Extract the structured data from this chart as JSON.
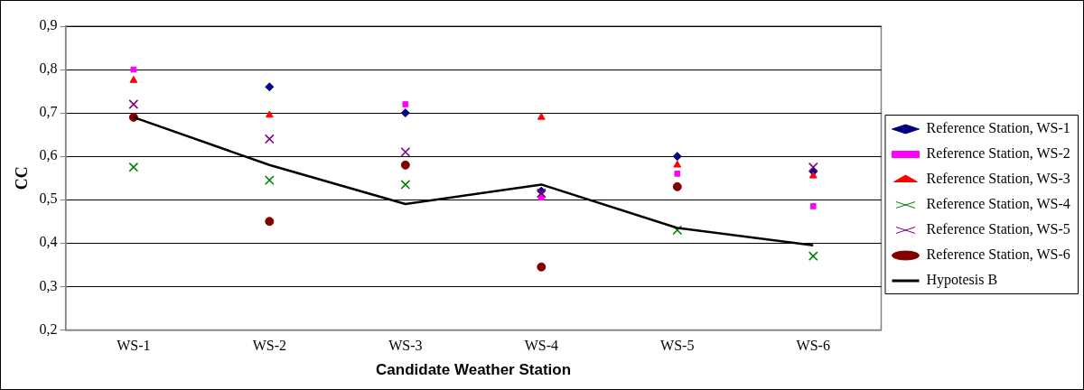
{
  "chart_data": {
    "type": "scatter",
    "xlabel": "Candidate Weather Station",
    "ylabel": "CC",
    "categories": [
      "WS-1",
      "WS-2",
      "WS-3",
      "WS-4",
      "WS-5",
      "WS-6"
    ],
    "ylim": [
      0.2,
      0.9
    ],
    "yticks": [
      {
        "value": 0.2,
        "label": "0,2"
      },
      {
        "value": 0.3,
        "label": "0,3"
      },
      {
        "value": 0.4,
        "label": "0,4"
      },
      {
        "value": 0.5,
        "label": "0,5"
      },
      {
        "value": 0.6,
        "label": "0,6"
      },
      {
        "value": 0.7,
        "label": "0,7"
      },
      {
        "value": 0.8,
        "label": "0,8"
      },
      {
        "value": 0.9,
        "label": "0,9"
      }
    ],
    "grid": "y",
    "legend": "right",
    "series": [
      {
        "name": "Reference Station, WS-1",
        "color": "#000080",
        "marker": "diamond",
        "values": [
          null,
          0.76,
          0.7,
          0.52,
          0.6,
          0.565
        ]
      },
      {
        "name": "Reference Station, WS-2",
        "color": "#ff00ff",
        "marker": "square",
        "values": [
          0.8,
          null,
          0.72,
          0.505,
          0.56,
          0.485
        ]
      },
      {
        "name": "Reference Station, WS-3",
        "color": "#ff0000",
        "marker": "triangle",
        "values": [
          0.775,
          0.695,
          null,
          0.69,
          0.58,
          0.555
        ]
      },
      {
        "name": "Reference Station, WS-4",
        "color": "#008000",
        "marker": "cross",
        "values": [
          0.575,
          0.545,
          0.535,
          null,
          0.43,
          0.37
        ]
      },
      {
        "name": "Reference Station, WS-5",
        "color": "#800080",
        "marker": "cross",
        "values": [
          0.72,
          0.64,
          0.61,
          0.515,
          null,
          0.575
        ]
      },
      {
        "name": "Reference Station, WS-6",
        "color": "#800000",
        "marker": "circle",
        "values": [
          0.69,
          0.45,
          0.58,
          0.345,
          0.53,
          null
        ]
      },
      {
        "name": "Hypotesis B",
        "type": "line",
        "color": "#000000",
        "marker": "none",
        "line_style": "solid",
        "values": [
          0.69,
          0.58,
          0.49,
          0.535,
          0.435,
          0.395
        ]
      }
    ]
  }
}
